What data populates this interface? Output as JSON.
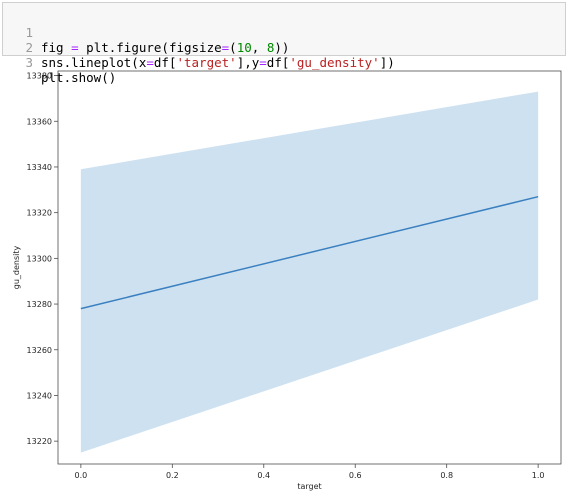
{
  "notebook": {
    "cell": {
      "lines": [
        {
          "num": "1",
          "tokens": [
            {
              "t": "fig "
            },
            {
              "t": "=",
              "c": "op"
            },
            {
              "t": " plt.figure(figsize"
            },
            {
              "t": "=",
              "c": "op"
            },
            {
              "t": "("
            },
            {
              "t": "10",
              "c": "num"
            },
            {
              "t": ", "
            },
            {
              "t": "8",
              "c": "num"
            },
            {
              "t": "))"
            }
          ]
        },
        {
          "num": "2",
          "tokens": [
            {
              "t": "sns.lineplot(x"
            },
            {
              "t": "=",
              "c": "op"
            },
            {
              "t": "df["
            },
            {
              "t": "'target'",
              "c": "str"
            },
            {
              "t": "],y"
            },
            {
              "t": "=",
              "c": "op"
            },
            {
              "t": "df["
            },
            {
              "t": "'gu_density'",
              "c": "str"
            },
            {
              "t": "])"
            }
          ]
        },
        {
          "num": "3",
          "tokens": [
            {
              "t": "plt.show()"
            }
          ]
        }
      ]
    }
  },
  "chart_data": {
    "type": "line",
    "xlabel": "target",
    "ylabel": "gu_density",
    "xlim": [
      -0.05,
      1.05
    ],
    "ylim": [
      13210,
      13382
    ],
    "xticks": [
      0.0,
      0.2,
      0.4,
      0.6,
      0.8,
      1.0
    ],
    "xtick_labels": [
      "0.0",
      "0.2",
      "0.4",
      "0.6",
      "0.8",
      "1.0"
    ],
    "yticks": [
      13220,
      13240,
      13260,
      13280,
      13300,
      13320,
      13340,
      13360,
      13380
    ],
    "ytick_labels": [
      "13220",
      "13240",
      "13260",
      "13280",
      "13300",
      "13320",
      "13340",
      "13360",
      "13380"
    ],
    "grid": false,
    "series": [
      {
        "x": [
          0.0,
          1.0
        ],
        "y": [
          13278,
          13327
        ],
        "ci_lower": [
          13215,
          13282
        ],
        "ci_upper": [
          13339,
          13373
        ],
        "color": "#3a80c0",
        "ci_color": "#aecde6"
      }
    ]
  }
}
